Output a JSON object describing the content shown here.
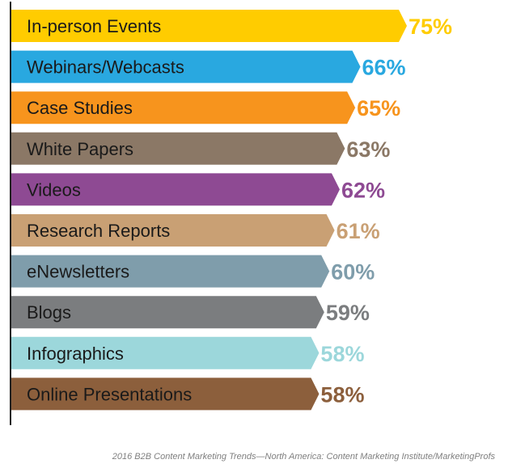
{
  "chart_data": {
    "type": "bar",
    "orientation": "horizontal",
    "categories": [
      "In-person Events",
      "Webinars/Webcasts",
      "Case Studies",
      "White Papers",
      "Videos",
      "Research Reports",
      "eNewsletters",
      "Blogs",
      "Infographics",
      "Online Presentations"
    ],
    "values": [
      75,
      66,
      65,
      63,
      62,
      61,
      60,
      59,
      58,
      58
    ],
    "value_labels": [
      "75%",
      "66%",
      "65%",
      "63%",
      "62%",
      "61%",
      "60%",
      "59%",
      "58%",
      "58%"
    ],
    "colors": [
      "#FFCC00",
      "#29A8E0",
      "#F7941D",
      "#8B7866",
      "#8E4A93",
      "#C9A074",
      "#7F9DAB",
      "#7B7D7F",
      "#9CD7DB",
      "#8C5F3C"
    ],
    "xlim": [
      0,
      75
    ],
    "grid": false,
    "legend": "none",
    "title": "",
    "xlabel": "",
    "ylabel": ""
  },
  "source": "2016 B2B Content Marketing Trends—North America: Content Marketing Institute/MarketingProfs"
}
